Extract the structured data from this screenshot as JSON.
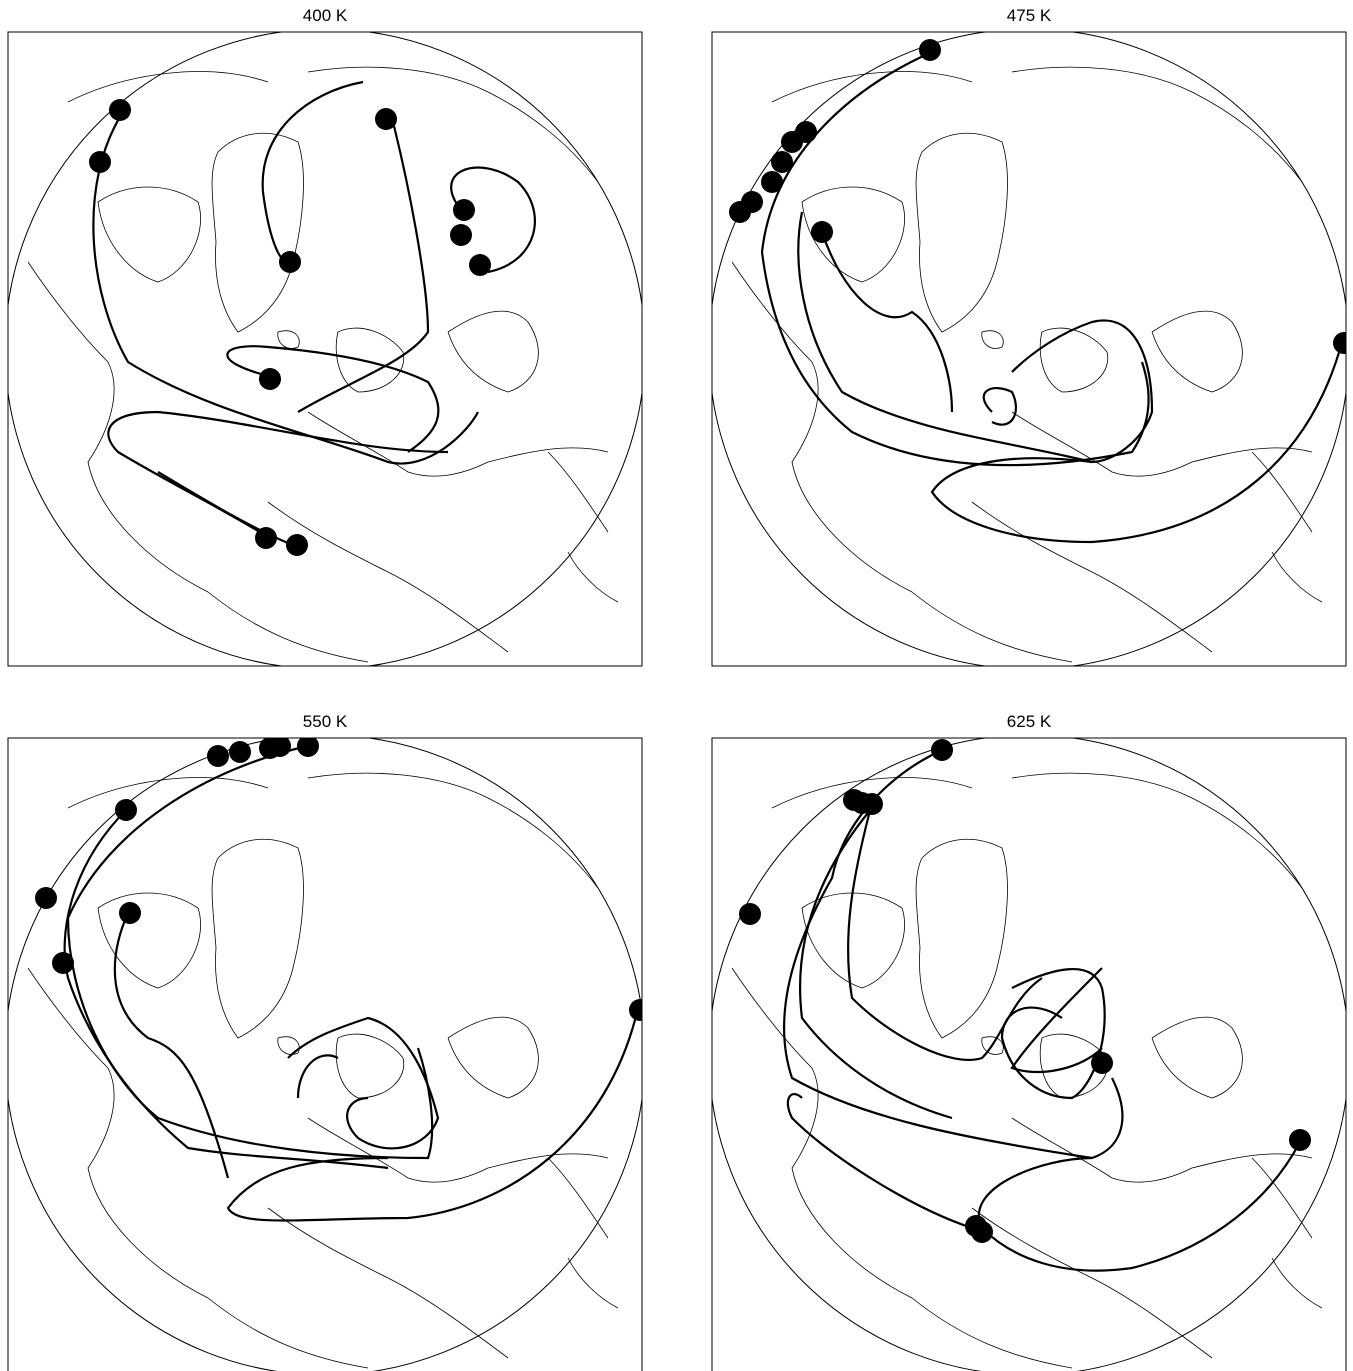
{
  "panels": [
    {
      "title": "400 K"
    },
    {
      "title": "475 K"
    },
    {
      "title": "550 K"
    },
    {
      "title": "625 K"
    }
  ]
}
